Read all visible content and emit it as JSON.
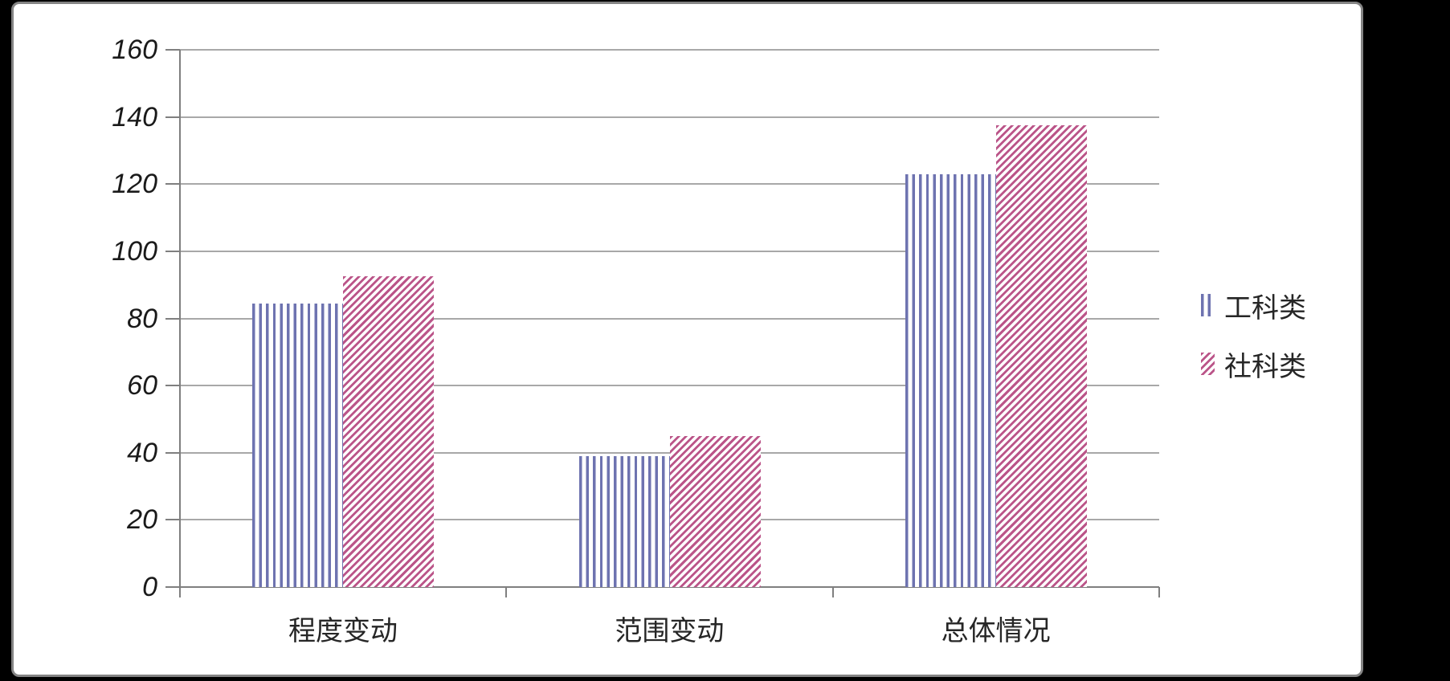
{
  "chart_data": {
    "type": "bar",
    "title": "",
    "xlabel": "",
    "ylabel": "",
    "categories": [
      "程度变动",
      "范围变动",
      "总体情况"
    ],
    "series": [
      {
        "name": "工科类",
        "values": [
          84.5,
          39,
          123
        ],
        "color": "#6e73b0",
        "pattern": "vertical-stripes"
      },
      {
        "name": "社科类",
        "values": [
          92.5,
          45,
          137.5
        ],
        "color": "#bb5589",
        "pattern": "diagonal-stripes"
      }
    ],
    "ylim": [
      0,
      160
    ],
    "ytick_step": 20,
    "ytick_labels": [
      "0",
      "20",
      "40",
      "60",
      "80",
      "100",
      "120",
      "140",
      "160"
    ],
    "grid": true,
    "gridline_color": "#a8a8a8",
    "axis_color": "#7f7f7f",
    "text_color": "#262626",
    "panel_background": "#ffffff",
    "outer_background": "#000000",
    "legend_position": "right"
  }
}
